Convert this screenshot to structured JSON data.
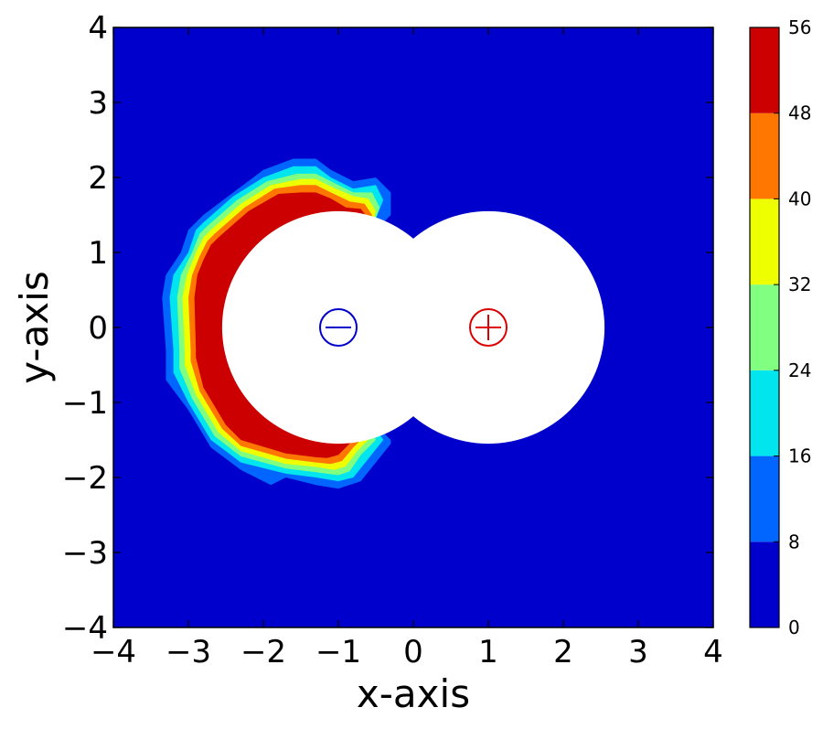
{
  "chart_data": {
    "type": "contourf",
    "xlabel": "x-axis",
    "ylabel": "y-axis",
    "xlim": [
      -4,
      4
    ],
    "ylim": [
      -4,
      4
    ],
    "xticks": [
      -4,
      -3,
      -2,
      -1,
      0,
      1,
      2,
      3,
      4
    ],
    "yticks": [
      -4,
      -3,
      -2,
      -1,
      0,
      1,
      2,
      3,
      4
    ],
    "background_level_color": "#0000cc",
    "colorbar": {
      "levels": [
        0,
        8,
        16,
        24,
        32,
        40,
        48,
        56
      ],
      "colors": [
        "#0000cc",
        "#0066ff",
        "#00e5ee",
        "#80ff80",
        "#eeff00",
        "#ff7700",
        "#cc0000"
      ]
    },
    "charges": [
      {
        "x": -1,
        "y": 0,
        "sign": "negative",
        "symbol": "−",
        "color": "#0000cc",
        "excluded_radius": 1.55
      },
      {
        "x": 1,
        "y": 0,
        "sign": "positive",
        "symbol": "+",
        "color": "#dd0000",
        "excluded_radius": 1.55
      }
    ],
    "bands": [
      {
        "min": 8,
        "max": 16,
        "color": "#0066ff",
        "polygon": [
          [
            -2.8,
            1.5
          ],
          [
            -2.4,
            1.8
          ],
          [
            -2.0,
            2.1
          ],
          [
            -1.6,
            2.25
          ],
          [
            -1.3,
            2.25
          ],
          [
            -1.1,
            2.1
          ],
          [
            -0.8,
            1.95
          ],
          [
            -0.5,
            2.0
          ],
          [
            -0.3,
            1.8
          ],
          [
            -0.3,
            1.5
          ],
          [
            -0.6,
            1.2
          ],
          [
            -1.0,
            1.2
          ],
          [
            -1.5,
            1.0
          ],
          [
            -2.0,
            0.6
          ],
          [
            -2.2,
            0.0
          ],
          [
            -2.0,
            -0.6
          ],
          [
            -1.5,
            -1.0
          ],
          [
            -1.0,
            -1.2
          ],
          [
            -0.6,
            -1.2
          ],
          [
            -0.3,
            -1.5
          ],
          [
            -0.3,
            -1.55
          ],
          [
            -0.5,
            -1.8
          ],
          [
            -0.7,
            -2.05
          ],
          [
            -1.0,
            -2.15
          ],
          [
            -1.3,
            -2.1
          ],
          [
            -1.7,
            -2.0
          ],
          [
            -1.9,
            -2.1
          ],
          [
            -2.3,
            -1.9
          ],
          [
            -2.7,
            -1.6
          ],
          [
            -3.0,
            -1.1
          ],
          [
            -3.3,
            -0.7
          ],
          [
            -3.3,
            -0.3
          ],
          [
            -3.35,
            0.4
          ],
          [
            -3.3,
            0.7
          ],
          [
            -3.1,
            1.0
          ],
          [
            -3.0,
            1.3
          ]
        ]
      },
      {
        "min": 16,
        "max": 24,
        "color": "#00e5ee",
        "polygon": [
          [
            -2.8,
            1.4
          ],
          [
            -2.4,
            1.75
          ],
          [
            -2.0,
            2.0
          ],
          [
            -1.6,
            2.15
          ],
          [
            -1.3,
            2.15
          ],
          [
            -1.1,
            2.0
          ],
          [
            -0.8,
            1.85
          ],
          [
            -0.5,
            1.9
          ],
          [
            -0.4,
            1.7
          ],
          [
            -0.6,
            1.2
          ],
          [
            -1.0,
            1.2
          ],
          [
            -1.5,
            1.0
          ],
          [
            -2.0,
            0.6
          ],
          [
            -2.2,
            0.0
          ],
          [
            -2.0,
            -0.6
          ],
          [
            -1.5,
            -1.0
          ],
          [
            -1.0,
            -1.2
          ],
          [
            -0.6,
            -1.2
          ],
          [
            -0.4,
            -1.5
          ],
          [
            -0.6,
            -1.75
          ],
          [
            -0.8,
            -2.0
          ],
          [
            -1.0,
            -2.05
          ],
          [
            -1.3,
            -2.0
          ],
          [
            -1.7,
            -1.95
          ],
          [
            -2.3,
            -1.8
          ],
          [
            -2.7,
            -1.5
          ],
          [
            -3.0,
            -1.0
          ],
          [
            -3.2,
            -0.6
          ],
          [
            -3.2,
            -0.3
          ],
          [
            -3.25,
            0.4
          ],
          [
            -3.2,
            0.7
          ],
          [
            -3.0,
            1.0
          ],
          [
            -2.9,
            1.3
          ]
        ]
      },
      {
        "min": 24,
        "max": 32,
        "color": "#80ff80",
        "polygon": [
          [
            -2.75,
            1.35
          ],
          [
            -2.35,
            1.7
          ],
          [
            -1.95,
            1.95
          ],
          [
            -1.55,
            2.05
          ],
          [
            -1.3,
            2.05
          ],
          [
            -1.1,
            1.95
          ],
          [
            -0.8,
            1.8
          ],
          [
            -0.55,
            1.8
          ],
          [
            -0.45,
            1.6
          ],
          [
            -0.6,
            1.2
          ],
          [
            -1.0,
            1.2
          ],
          [
            -1.5,
            1.0
          ],
          [
            -2.0,
            0.6
          ],
          [
            -2.2,
            0.0
          ],
          [
            -2.0,
            -0.6
          ],
          [
            -1.5,
            -1.0
          ],
          [
            -1.0,
            -1.2
          ],
          [
            -0.6,
            -1.2
          ],
          [
            -0.5,
            -1.5
          ],
          [
            -0.7,
            -1.7
          ],
          [
            -0.85,
            -1.92
          ],
          [
            -1.0,
            -1.97
          ],
          [
            -1.3,
            -1.93
          ],
          [
            -1.7,
            -1.88
          ],
          [
            -2.3,
            -1.72
          ],
          [
            -2.65,
            -1.45
          ],
          [
            -2.95,
            -0.95
          ],
          [
            -3.12,
            -0.55
          ],
          [
            -3.12,
            -0.3
          ],
          [
            -3.15,
            0.4
          ],
          [
            -3.1,
            0.7
          ],
          [
            -2.95,
            1.0
          ],
          [
            -2.85,
            1.25
          ]
        ]
      },
      {
        "min": 32,
        "max": 40,
        "color": "#eeff00",
        "polygon": [
          [
            -2.7,
            1.3
          ],
          [
            -2.3,
            1.65
          ],
          [
            -1.9,
            1.9
          ],
          [
            -1.5,
            1.98
          ],
          [
            -1.3,
            1.98
          ],
          [
            -1.1,
            1.88
          ],
          [
            -0.8,
            1.75
          ],
          [
            -0.6,
            1.72
          ],
          [
            -0.5,
            1.55
          ],
          [
            -0.6,
            1.2
          ],
          [
            -1.0,
            1.2
          ],
          [
            -1.5,
            1.0
          ],
          [
            -2.0,
            0.6
          ],
          [
            -2.2,
            0.0
          ],
          [
            -2.0,
            -0.6
          ],
          [
            -1.5,
            -1.0
          ],
          [
            -1.0,
            -1.2
          ],
          [
            -0.6,
            -1.2
          ],
          [
            -0.55,
            -1.45
          ],
          [
            -0.75,
            -1.65
          ],
          [
            -0.9,
            -1.85
          ],
          [
            -1.05,
            -1.9
          ],
          [
            -1.3,
            -1.86
          ],
          [
            -1.7,
            -1.82
          ],
          [
            -2.3,
            -1.65
          ],
          [
            -2.6,
            -1.4
          ],
          [
            -2.9,
            -0.9
          ],
          [
            -3.05,
            -0.5
          ],
          [
            -3.05,
            -0.3
          ],
          [
            -3.08,
            0.4
          ],
          [
            -3.02,
            0.7
          ],
          [
            -2.9,
            1.0
          ],
          [
            -2.8,
            1.2
          ]
        ]
      },
      {
        "min": 40,
        "max": 48,
        "color": "#ff7700",
        "polygon": [
          [
            -2.65,
            1.25
          ],
          [
            -2.25,
            1.6
          ],
          [
            -1.85,
            1.85
          ],
          [
            -1.5,
            1.9
          ],
          [
            -1.3,
            1.9
          ],
          [
            -1.1,
            1.8
          ],
          [
            -0.85,
            1.68
          ],
          [
            -0.65,
            1.65
          ],
          [
            -0.55,
            1.5
          ],
          [
            -0.6,
            1.2
          ],
          [
            -1.0,
            1.2
          ],
          [
            -1.5,
            1.0
          ],
          [
            -2.0,
            0.6
          ],
          [
            -2.2,
            0.0
          ],
          [
            -2.0,
            -0.6
          ],
          [
            -1.5,
            -1.0
          ],
          [
            -1.0,
            -1.2
          ],
          [
            -0.6,
            -1.2
          ],
          [
            -0.6,
            -1.4
          ],
          [
            -0.8,
            -1.6
          ],
          [
            -0.95,
            -1.78
          ],
          [
            -1.1,
            -1.82
          ],
          [
            -1.3,
            -1.8
          ],
          [
            -1.7,
            -1.75
          ],
          [
            -2.3,
            -1.58
          ],
          [
            -2.55,
            -1.35
          ],
          [
            -2.85,
            -0.85
          ],
          [
            -2.97,
            -0.45
          ],
          [
            -2.97,
            -0.3
          ],
          [
            -3.0,
            0.4
          ],
          [
            -2.95,
            0.7
          ],
          [
            -2.85,
            0.95
          ],
          [
            -2.75,
            1.15
          ]
        ]
      },
      {
        "min": 48,
        "max": 56,
        "color": "#cc0000",
        "polygon": [
          [
            -2.6,
            1.2
          ],
          [
            -2.2,
            1.55
          ],
          [
            -1.8,
            1.78
          ],
          [
            -1.5,
            1.8
          ],
          [
            -1.3,
            1.8
          ],
          [
            -1.1,
            1.72
          ],
          [
            -0.9,
            1.6
          ],
          [
            -0.7,
            1.58
          ],
          [
            -0.6,
            1.45
          ],
          [
            -0.6,
            1.2
          ],
          [
            -1.0,
            1.2
          ],
          [
            -1.5,
            1.0
          ],
          [
            -2.0,
            0.6
          ],
          [
            -2.2,
            0.0
          ],
          [
            -2.0,
            -0.6
          ],
          [
            -1.5,
            -1.0
          ],
          [
            -1.0,
            -1.2
          ],
          [
            -0.6,
            -1.2
          ],
          [
            -0.65,
            -1.35
          ],
          [
            -0.85,
            -1.55
          ],
          [
            -1.0,
            -1.7
          ],
          [
            -1.15,
            -1.74
          ],
          [
            -1.3,
            -1.73
          ],
          [
            -1.7,
            -1.68
          ],
          [
            -2.3,
            -1.5
          ],
          [
            -2.5,
            -1.3
          ],
          [
            -2.8,
            -0.8
          ],
          [
            -2.9,
            -0.4
          ],
          [
            -2.9,
            -0.3
          ],
          [
            -2.92,
            0.4
          ],
          [
            -2.88,
            0.7
          ],
          [
            -2.8,
            0.9
          ],
          [
            -2.7,
            1.1
          ]
        ]
      }
    ]
  }
}
